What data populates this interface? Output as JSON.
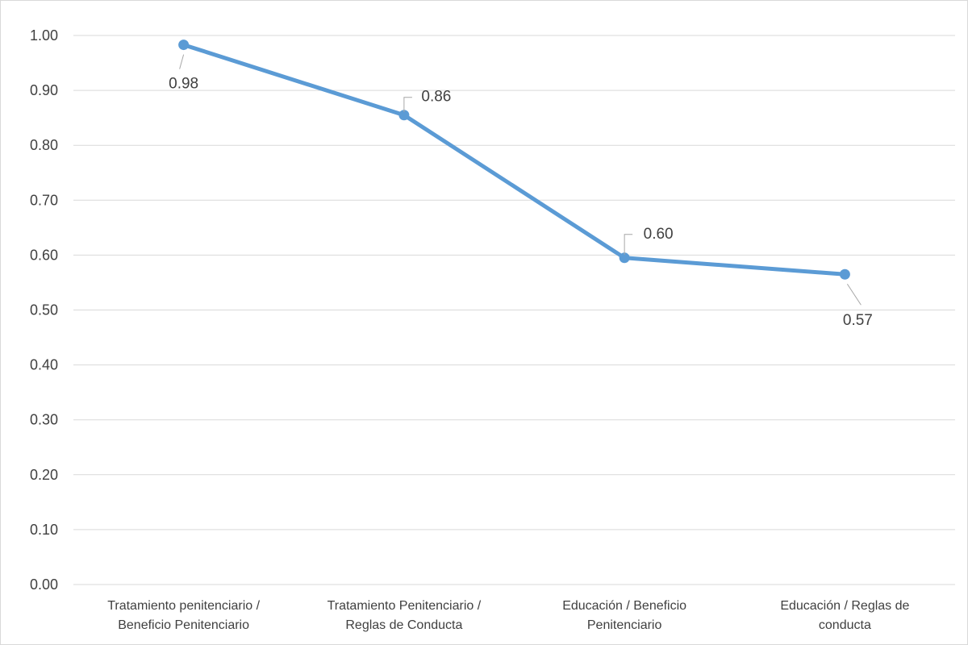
{
  "chart_data": {
    "type": "line",
    "title": "",
    "xlabel": "",
    "ylabel": "",
    "categories": [
      [
        "Tratamiento penitenciario /",
        "Beneficio Penitenciario"
      ],
      [
        "Tratamiento Penitenciario /",
        "Reglas de Conducta"
      ],
      [
        "Educación / Beneficio",
        "Penitenciario"
      ],
      [
        "Educación / Reglas de",
        "conducta"
      ]
    ],
    "series": [
      {
        "values": [
          0.983,
          0.855,
          0.595,
          0.565
        ],
        "data_labels": [
          "0.98",
          "0.86",
          "0.60",
          "0.57"
        ],
        "color": "#5b9bd5"
      }
    ],
    "ylim": [
      0,
      1
    ],
    "yticks": [
      "0.00",
      "0.10",
      "0.20",
      "0.30",
      "0.40",
      "0.50",
      "0.60",
      "0.70",
      "0.80",
      "0.90",
      "1.00"
    ],
    "grid": true,
    "legend": "none",
    "colors": {
      "gridline": "#d9d9d9",
      "leader_line": "#a6a6a6",
      "text": "#404040"
    }
  }
}
